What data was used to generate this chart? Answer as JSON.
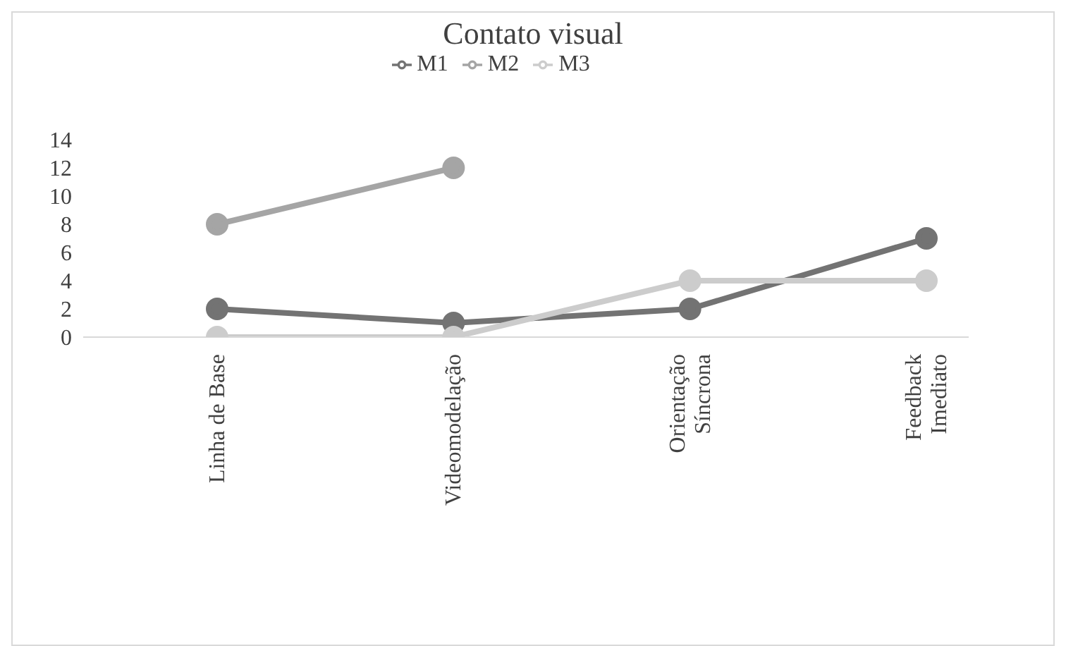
{
  "chart_data": {
    "type": "line",
    "title": "Contato visual",
    "categories": [
      "Linha de Base",
      "Videomodelação",
      "Orientação Síncrona",
      "Feedback Imediato"
    ],
    "series": [
      {
        "name": "M1",
        "color": "#737373",
        "values": [
          2,
          1,
          2,
          7
        ]
      },
      {
        "name": "M2",
        "color": "#a5a5a5",
        "values": [
          8,
          12,
          null,
          null
        ]
      },
      {
        "name": "M3",
        "color": "#cccccc",
        "values": [
          0,
          0,
          4,
          4
        ]
      }
    ],
    "ylim": [
      0,
      14
    ],
    "yticks": [
      0,
      2,
      4,
      6,
      8,
      10,
      12,
      14
    ],
    "grid": false,
    "legend": "top",
    "marker": "circle",
    "line_style": "solid"
  }
}
